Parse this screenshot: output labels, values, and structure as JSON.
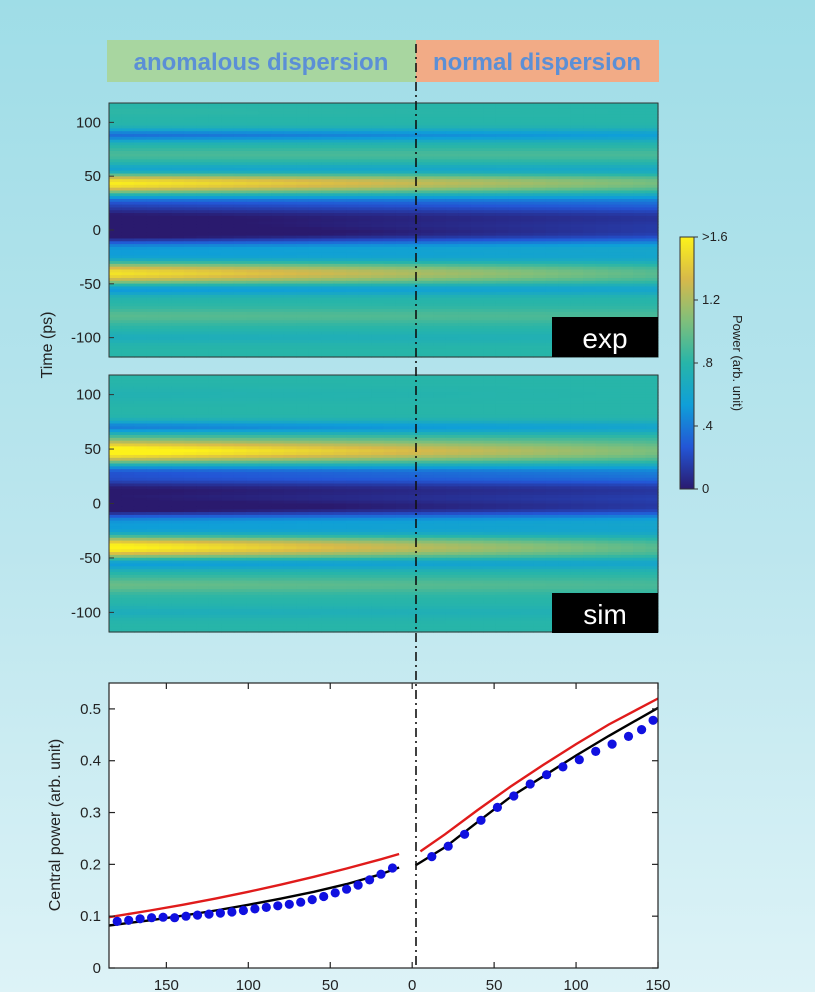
{
  "colors": {
    "anomalous_bg": "#a8d6a0",
    "normal_bg": "#f2ab86",
    "banner_text": "#5b8fd6",
    "fit_black": "#000000",
    "theory_red": "#e01b1b",
    "data_blue": "#1010e0",
    "tag_bg": "#000000",
    "tag_text": "#ffffff",
    "colormap": [
      "#2a1a6e",
      "#2356d6",
      "#0f9fd8",
      "#27b5a9",
      "#7fbf7b",
      "#d7b94a",
      "#fdf21a"
    ]
  },
  "chart_data": [
    {
      "type": "heatmap",
      "panel": "exp",
      "tag": "exp",
      "banner_left": "anomalous dispersion",
      "banner_right": "normal dispersion",
      "x_range": [
        -185,
        150
      ],
      "y_ticks": [
        "100",
        "50",
        "0",
        "-50",
        "-100"
      ],
      "y_tick_values": [
        100,
        50,
        0,
        -50,
        -100
      ],
      "ylim": [
        -118,
        118
      ],
      "ylabel": "Time (ps)",
      "bands": [
        {
          "t": 110,
          "w": 3,
          "a": 0.82,
          "b": 0.8
        },
        {
          "t": 88,
          "w": 4,
          "a": 0.35,
          "b": 0.55
        },
        {
          "t": 70,
          "w": 4,
          "a": 0.9,
          "b": 0.9
        },
        {
          "t": 55,
          "w": 4,
          "a": 0.45,
          "b": 0.6
        },
        {
          "t": 43,
          "w": 7,
          "a": 1.6,
          "b": 1.05
        },
        {
          "t": 28,
          "w": 6,
          "a": 0.45,
          "b": 0.55
        },
        {
          "t": 12,
          "w": 9,
          "a": 0.02,
          "b": 0.15
        },
        {
          "t": -5,
          "w": 7,
          "a": 0.05,
          "b": 0.3
        },
        {
          "t": -25,
          "w": 6,
          "a": 0.5,
          "b": 0.6
        },
        {
          "t": -40,
          "w": 7,
          "a": 1.55,
          "b": 0.95
        },
        {
          "t": -55,
          "w": 4,
          "a": 0.45,
          "b": 0.6
        },
        {
          "t": -80,
          "w": 5,
          "a": 0.95,
          "b": 0.9
        },
        {
          "t": -100,
          "w": 4,
          "a": 0.7,
          "b": 0.75
        }
      ]
    },
    {
      "type": "heatmap",
      "panel": "sim",
      "tag": "sim",
      "x_range": [
        -185,
        150
      ],
      "y_ticks": [
        "100",
        "50",
        "0",
        "-50",
        "-100"
      ],
      "y_tick_values": [
        100,
        50,
        0,
        -50,
        -100
      ],
      "ylim": [
        -118,
        118
      ],
      "bands": [
        {
          "t": 100,
          "w": 5,
          "a": 0.75,
          "b": 0.8
        },
        {
          "t": 70,
          "w": 4,
          "a": 0.4,
          "b": 0.6
        },
        {
          "t": 48,
          "w": 7,
          "a": 1.7,
          "b": 1.05
        },
        {
          "t": 30,
          "w": 5,
          "a": 0.4,
          "b": 0.55
        },
        {
          "t": 13,
          "w": 9,
          "a": 0.02,
          "b": 0.15
        },
        {
          "t": -5,
          "w": 7,
          "a": 0.03,
          "b": 0.25
        },
        {
          "t": -25,
          "w": 6,
          "a": 0.5,
          "b": 0.6
        },
        {
          "t": -40,
          "w": 7,
          "a": 1.65,
          "b": 0.95
        },
        {
          "t": -55,
          "w": 4,
          "a": 0.45,
          "b": 0.6
        },
        {
          "t": -75,
          "w": 5,
          "a": 1.0,
          "b": 0.9
        },
        {
          "t": -100,
          "w": 4,
          "a": 0.7,
          "b": 0.75
        }
      ]
    },
    {
      "type": "colorbar",
      "title": "Power (arb. unit)",
      "range": [
        0,
        1.6
      ],
      "ticks": [
        {
          "label": ">1.6",
          "value": 1.6
        },
        {
          "label": "1.2",
          "value": 1.2
        },
        {
          "label": ".8",
          "value": 0.8
        },
        {
          "label": ".4",
          "value": 0.4
        },
        {
          "label": "0",
          "value": 0
        }
      ]
    },
    {
      "type": "line",
      "xlim": [
        -185,
        150
      ],
      "ylim": [
        0,
        0.55
      ],
      "ylabel": "Central power (arb. unit)",
      "x_ticks": [
        {
          "label": "150",
          "value": -150
        },
        {
          "label": "100",
          "value": -100
        },
        {
          "label": "50",
          "value": -50
        },
        {
          "label": "0",
          "value": 0
        },
        {
          "label": "50",
          "value": 50
        },
        {
          "label": "100",
          "value": 100
        },
        {
          "label": "150",
          "value": 150
        }
      ],
      "y_ticks": [
        {
          "label": "0",
          "value": 0
        },
        {
          "label": "0.1",
          "value": 0.1
        },
        {
          "label": "0.2",
          "value": 0.2
        },
        {
          "label": "0.3",
          "value": 0.3
        },
        {
          "label": "0.4",
          "value": 0.4
        },
        {
          "label": "0.5",
          "value": 0.5
        }
      ],
      "series": [
        {
          "style": "line",
          "color": "#e01b1b",
          "segments": [
            {
              "x": [
                -185,
                -160,
                -140,
                -120,
                -100,
                -80,
                -60,
                -40,
                -20,
                -8
              ],
              "y": [
                0.098,
                0.111,
                0.122,
                0.134,
                0.147,
                0.161,
                0.176,
                0.192,
                0.209,
                0.22
              ]
            },
            {
              "x": [
                5,
                20,
                40,
                60,
                80,
                100,
                120,
                150
              ],
              "y": [
                0.225,
                0.258,
                0.305,
                0.35,
                0.392,
                0.432,
                0.47,
                0.52
              ]
            }
          ]
        },
        {
          "style": "line",
          "color": "#000000",
          "segments": [
            {
              "x": [
                -185,
                -160,
                -140,
                -120,
                -100,
                -80,
                -60,
                -40,
                -20,
                -8
              ],
              "y": [
                0.082,
                0.092,
                0.101,
                0.111,
                0.122,
                0.134,
                0.147,
                0.162,
                0.18,
                0.194
              ]
            },
            {
              "x": [
                2,
                20,
                40,
                60,
                80,
                100,
                120,
                150
              ],
              "y": [
                0.198,
                0.233,
                0.282,
                0.33,
                0.37,
                0.41,
                0.448,
                0.502
              ]
            }
          ]
        },
        {
          "style": "scatter",
          "color": "#1010e0",
          "x": [
            -180,
            -173,
            -166,
            -159,
            -152,
            -145,
            -138,
            -131,
            -124,
            -117,
            -110,
            -103,
            -96,
            -89,
            -82,
            -75,
            -68,
            -61,
            -54,
            -47,
            -40,
            -33,
            -26,
            -19,
            -12,
            12,
            22,
            32,
            42,
            52,
            62,
            72,
            82,
            92,
            102,
            112,
            122,
            132,
            140,
            147
          ],
          "y": [
            0.09,
            0.092,
            0.095,
            0.097,
            0.098,
            0.097,
            0.1,
            0.102,
            0.104,
            0.106,
            0.108,
            0.111,
            0.114,
            0.117,
            0.12,
            0.123,
            0.127,
            0.132,
            0.138,
            0.145,
            0.152,
            0.16,
            0.17,
            0.181,
            0.193,
            0.215,
            0.235,
            0.258,
            0.285,
            0.31,
            0.332,
            0.355,
            0.373,
            0.388,
            0.402,
            0.418,
            0.432,
            0.447,
            0.46,
            0.478
          ]
        }
      ]
    }
  ]
}
